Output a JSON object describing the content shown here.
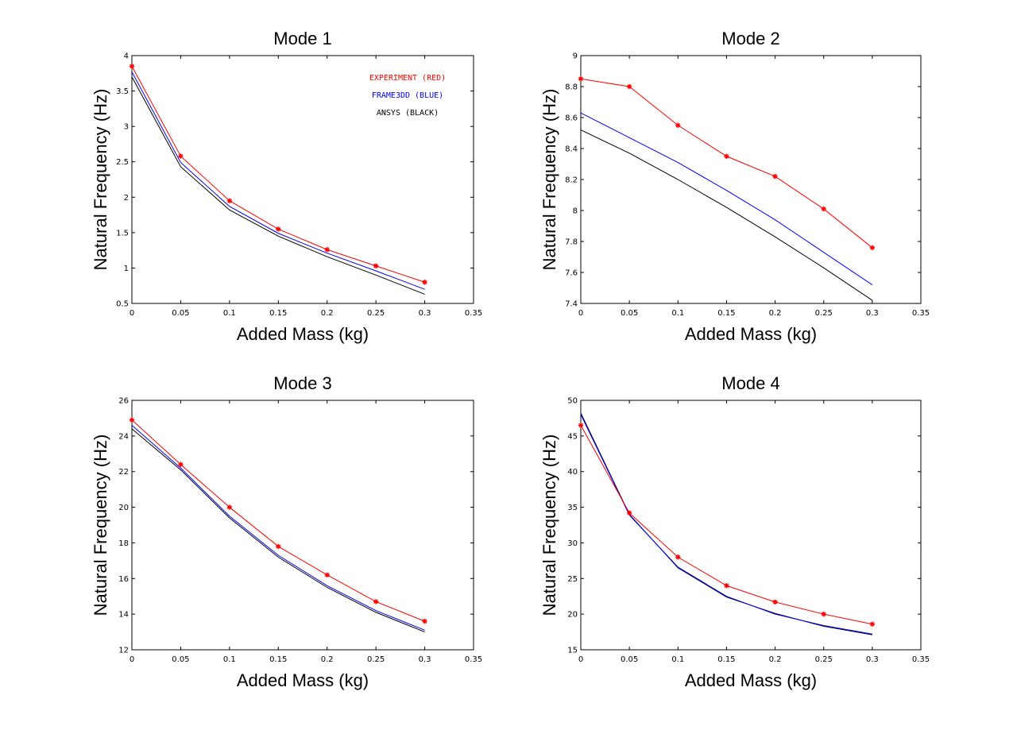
{
  "chart_data": [
    {
      "type": "line",
      "title": "Mode 1",
      "xlabel": "Added Mass (kg)",
      "ylabel": "Natural Frequency (Hz)",
      "xlim": [
        0,
        0.35
      ],
      "ylim": [
        0.5,
        4
      ],
      "xticks": [
        "0",
        "0.05",
        "0.1",
        "0.15",
        "0.2",
        "0.25",
        "0.3",
        "0.35"
      ],
      "yticks": [
        "0.5",
        "1",
        "1.5",
        "2",
        "2.5",
        "3",
        "3.5",
        "4"
      ],
      "grid": false,
      "legend": {
        "placement": "top-right",
        "entries": [
          "EXPERIMENT (RED)",
          "FRAME3DD (BLUE)",
          "ANSYS (BLACK)"
        ]
      },
      "x": [
        0,
        0.05,
        0.1,
        0.15,
        0.2,
        0.25,
        0.3
      ],
      "series": [
        {
          "name": "EXPERIMENT (RED)",
          "color": "#ff0000",
          "marker": "*",
          "values": [
            3.85,
            2.58,
            1.95,
            1.55,
            1.26,
            1.03,
            0.8
          ]
        },
        {
          "name": "FRAME3DD (BLUE)",
          "color": "#0000ff",
          "marker": "none",
          "values": [
            3.77,
            2.49,
            1.87,
            1.49,
            1.21,
            0.96,
            0.7
          ]
        },
        {
          "name": "ANSYS (BLACK)",
          "color": "#000000",
          "marker": "none",
          "values": [
            3.7,
            2.43,
            1.82,
            1.45,
            1.16,
            0.9,
            0.63
          ]
        }
      ]
    },
    {
      "type": "line",
      "title": "Mode 2",
      "xlabel": "Added Mass (kg)",
      "ylabel": "Natural Frequency (Hz)",
      "xlim": [
        0,
        0.35
      ],
      "ylim": [
        7.4,
        9
      ],
      "xticks": [
        "0",
        "0.05",
        "0.1",
        "0.15",
        "0.2",
        "0.25",
        "0.3",
        "0.35"
      ],
      "yticks": [
        "7.4",
        "7.6",
        "7.8",
        "8",
        "8.2",
        "8.4",
        "8.6",
        "8.8",
        "9"
      ],
      "grid": false,
      "x": [
        0,
        0.05,
        0.1,
        0.15,
        0.2,
        0.25,
        0.3
      ],
      "series": [
        {
          "color": "#ff0000",
          "marker": "*",
          "values": [
            8.85,
            8.8,
            8.55,
            8.35,
            8.22,
            8.01,
            7.76
          ]
        },
        {
          "color": "#0000ff",
          "marker": "none",
          "values": [
            8.63,
            8.47,
            8.31,
            8.13,
            7.94,
            7.73,
            7.52
          ]
        },
        {
          "color": "#000000",
          "marker": "none",
          "values": [
            8.52,
            8.37,
            8.2,
            8.02,
            7.83,
            7.63,
            7.42
          ]
        }
      ]
    },
    {
      "type": "line",
      "title": "Mode 3",
      "xlabel": "Added Mass (kg)",
      "ylabel": "Natural Frequency (Hz)",
      "xlim": [
        0,
        0.35
      ],
      "ylim": [
        12,
        26
      ],
      "xticks": [
        "0",
        "0.05",
        "0.1",
        "0.15",
        "0.2",
        "0.25",
        "0.3",
        "0.35"
      ],
      "yticks": [
        "12",
        "14",
        "16",
        "18",
        "20",
        "22",
        "24",
        "26"
      ],
      "grid": false,
      "x": [
        0,
        0.05,
        0.1,
        0.15,
        0.2,
        0.25,
        0.3
      ],
      "series": [
        {
          "color": "#ff0000",
          "marker": "*",
          "values": [
            24.9,
            22.4,
            20.0,
            17.8,
            16.2,
            14.7,
            13.6
          ]
        },
        {
          "color": "#0000ff",
          "marker": "none",
          "values": [
            24.6,
            22.2,
            19.5,
            17.3,
            15.6,
            14.2,
            13.1
          ]
        },
        {
          "color": "#000000",
          "marker": "none",
          "values": [
            24.4,
            22.1,
            19.4,
            17.2,
            15.5,
            14.1,
            13.0
          ]
        }
      ]
    },
    {
      "type": "line",
      "title": "Mode 4",
      "xlabel": "Added Mass (kg)",
      "ylabel": "Natural Frequency (Hz)",
      "xlim": [
        0,
        0.35
      ],
      "ylim": [
        15,
        50
      ],
      "xticks": [
        "0",
        "0.05",
        "0.1",
        "0.15",
        "0.2",
        "0.25",
        "0.3",
        "0.35"
      ],
      "yticks": [
        "15",
        "20",
        "25",
        "30",
        "35",
        "40",
        "45",
        "50"
      ],
      "grid": false,
      "x": [
        0,
        0.05,
        0.1,
        0.15,
        0.2,
        0.25,
        0.3
      ],
      "series": [
        {
          "color": "#ff0000",
          "marker": "*",
          "values": [
            46.5,
            34.2,
            28.0,
            24.0,
            21.7,
            20.0,
            18.6
          ]
        },
        {
          "color": "#0000ff",
          "marker": "none",
          "values": [
            48.0,
            33.9,
            26.6,
            22.5,
            20.0,
            18.4,
            17.2
          ]
        },
        {
          "color": "#000000",
          "marker": "none",
          "values": [
            48.2,
            34.0,
            26.5,
            22.4,
            20.1,
            18.3,
            17.1
          ]
        }
      ]
    }
  ]
}
